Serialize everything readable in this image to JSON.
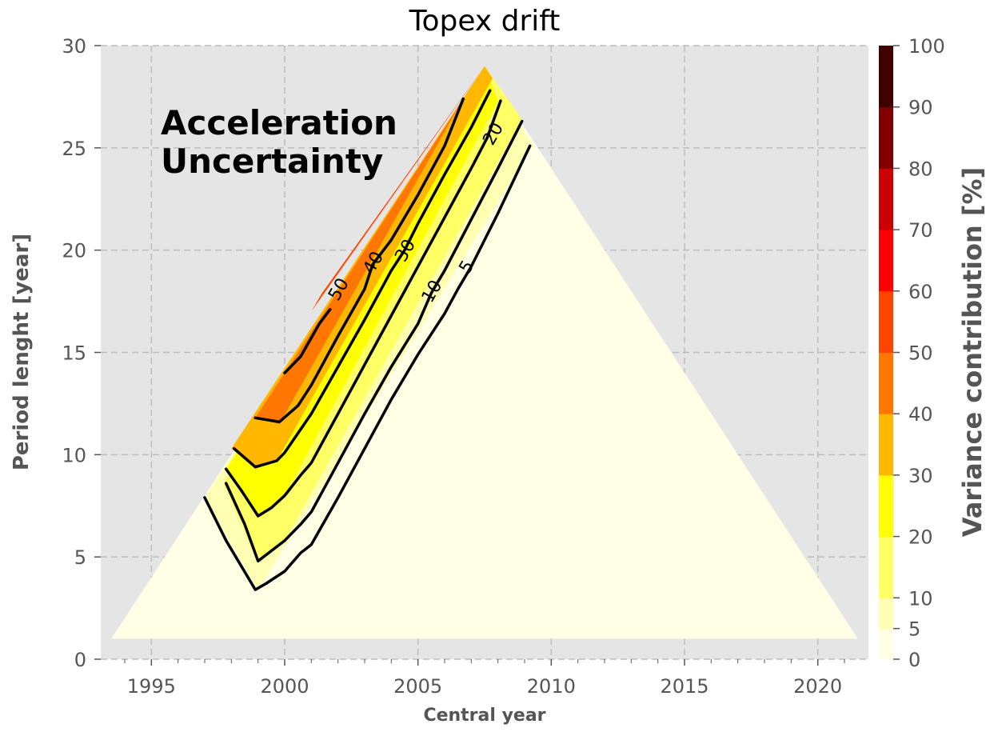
{
  "chart_data": {
    "type": "contourf",
    "title": "Topex drift",
    "xlabel": "Central year",
    "ylabel": "Period lenght [year]",
    "xlim": [
      1993.1,
      2021.9
    ],
    "ylim": [
      0,
      30
    ],
    "xticks": [
      1995,
      2000,
      2005,
      2010,
      2015,
      2020
    ],
    "yticks": [
      0,
      5,
      10,
      15,
      20,
      25,
      30
    ],
    "grid": true,
    "background_color": "#e5e5e5",
    "annotation": [
      "Acceleration",
      "Uncertainty"
    ],
    "domain_triangle": [
      [
        1993.5,
        1.0
      ],
      [
        2007.5,
        29.0
      ],
      [
        2021.5,
        1.0
      ]
    ],
    "colorbar": {
      "label": "Variance contribution [%]",
      "levels": [
        0,
        5,
        10,
        20,
        30,
        40,
        50,
        60,
        70,
        80,
        90,
        100
      ],
      "tick_labels": [
        "0",
        "5",
        "10",
        "20",
        "30",
        "40",
        "50",
        "60",
        "70",
        "80",
        "90",
        "100"
      ],
      "colors": [
        "#ffffe6",
        "#ffffb3",
        "#ffff66",
        "#ffff00",
        "#ffb700",
        "#ff7700",
        "#ff4400",
        "#ff0000",
        "#cc0000",
        "#800000",
        "#400000"
      ]
    },
    "filled_regions": [
      {
        "level": "5-10",
        "color": "#ffffb3",
        "points": [
          [
            1997.0,
            7.9
          ],
          [
            1999.0,
            3.4
          ],
          [
            2009.3,
            25.1
          ],
          [
            2007.5,
            29.0
          ]
        ]
      },
      {
        "level": "10-20",
        "color": "#ffff66",
        "points": [
          [
            1997.7,
            8.6
          ],
          [
            1999.0,
            4.7
          ],
          [
            2000.0,
            5.8
          ],
          [
            2008.9,
            26.4
          ],
          [
            2007.5,
            29.0
          ]
        ]
      },
      {
        "level": "20-30",
        "color": "#ffff00",
        "points": [
          [
            1997.8,
            9.3
          ],
          [
            1999.0,
            7.0
          ],
          [
            2000.0,
            8.0
          ],
          [
            2008.0,
            27.3
          ],
          [
            2007.5,
            29.0
          ]
        ]
      },
      {
        "level": "30-40",
        "color": "#ffb700",
        "points": [
          [
            1998.0,
            10.3
          ],
          [
            1998.9,
            9.3
          ],
          [
            1999.7,
            9.7
          ],
          [
            2007.8,
            28.4
          ],
          [
            2007.5,
            29.0
          ]
        ]
      },
      {
        "level": "40-50",
        "color": "#ff7700",
        "points": [
          [
            1998.9,
            11.8
          ],
          [
            1999.8,
            11.5
          ],
          [
            2006.7,
            27.4
          ],
          [
            2007.5,
            29.0
          ]
        ]
      },
      {
        "level": "50-60",
        "color": "#ff4400",
        "points": [
          [
            2001.0,
            17.0
          ],
          [
            2007.5,
            29.0
          ],
          [
            2001.4,
            17.9
          ]
        ]
      }
    ],
    "contour_lines": [
      {
        "level": 5,
        "label": "5",
        "label_at": [
          2006.8,
          19.2
        ],
        "points": [
          [
            1997.0,
            7.9
          ],
          [
            1997.8,
            5.8
          ],
          [
            1998.9,
            3.4
          ],
          [
            1999.3,
            3.7
          ],
          [
            2000.0,
            4.3
          ],
          [
            2000.6,
            5.2
          ],
          [
            2001.0,
            5.6
          ],
          [
            2002.0,
            7.9
          ],
          [
            2003.0,
            10.3
          ],
          [
            2004.0,
            12.7
          ],
          [
            2005.0,
            14.9
          ],
          [
            2006.0,
            16.9
          ],
          [
            2006.5,
            18.1
          ],
          [
            2007.0,
            19.2
          ],
          [
            2008.0,
            21.8
          ],
          [
            2009.2,
            25.1
          ]
        ]
      },
      {
        "level": 10,
        "label": "10",
        "label_at": [
          2005.5,
          18.0
        ],
        "points": [
          [
            1997.8,
            8.6
          ],
          [
            1998.5,
            6.6
          ],
          [
            1999.0,
            4.8
          ],
          [
            1999.4,
            5.2
          ],
          [
            2000.0,
            5.8
          ],
          [
            2000.6,
            6.6
          ],
          [
            2001.0,
            7.2
          ],
          [
            2002.0,
            9.6
          ],
          [
            2003.0,
            12.0
          ],
          [
            2004.0,
            14.3
          ],
          [
            2005.0,
            16.4
          ],
          [
            2005.5,
            17.9
          ],
          [
            2006.0,
            19.0
          ],
          [
            2007.0,
            21.5
          ],
          [
            2008.0,
            24.0
          ],
          [
            2008.9,
            26.3
          ]
        ]
      },
      {
        "level": 20,
        "label": "20",
        "label_at": [
          2007.8,
          25.7
        ],
        "points": [
          [
            1997.8,
            9.3
          ],
          [
            1998.4,
            8.2
          ],
          [
            1999.0,
            7.0
          ],
          [
            1999.5,
            7.4
          ],
          [
            2000.0,
            8.0
          ],
          [
            2000.6,
            9.0
          ],
          [
            2001.0,
            9.6
          ],
          [
            2002.0,
            12.0
          ],
          [
            2003.0,
            14.4
          ],
          [
            2004.0,
            16.8
          ],
          [
            2005.0,
            19.2
          ],
          [
            2006.0,
            21.6
          ],
          [
            2007.0,
            24.0
          ],
          [
            2007.6,
            25.5
          ],
          [
            2008.1,
            27.3
          ]
        ]
      },
      {
        "level": 30,
        "label": "30",
        "label_at": [
          2004.5,
          20.0
        ],
        "points": [
          [
            1998.1,
            10.3
          ],
          [
            1998.9,
            9.4
          ],
          [
            1999.7,
            9.7
          ],
          [
            2000.0,
            10.1
          ],
          [
            2001.0,
            12.0
          ],
          [
            2002.0,
            14.3
          ],
          [
            2003.0,
            16.6
          ],
          [
            2004.0,
            19.0
          ],
          [
            2004.5,
            20.0
          ],
          [
            2005.0,
            21.3
          ],
          [
            2006.0,
            23.7
          ],
          [
            2007.0,
            26.0
          ],
          [
            2007.7,
            27.8
          ]
        ]
      },
      {
        "level": 40,
        "label": "40",
        "label_at": [
          2003.3,
          19.4
        ],
        "points": [
          [
            1998.9,
            11.8
          ],
          [
            1999.8,
            11.6
          ],
          [
            2000.5,
            12.4
          ],
          [
            2001.0,
            13.4
          ],
          [
            2002.0,
            15.8
          ],
          [
            2003.0,
            18.1
          ],
          [
            2003.3,
            19.3
          ],
          [
            2004.0,
            20.5
          ],
          [
            2005.0,
            22.7
          ],
          [
            2006.0,
            25.1
          ],
          [
            2006.7,
            27.4
          ]
        ]
      },
      {
        "level": 50,
        "label": "50",
        "label_at": [
          2002.0,
          18.1
        ],
        "points": [
          [
            2000.0,
            14.0
          ],
          [
            2000.6,
            14.8
          ],
          [
            2001.3,
            16.4
          ],
          [
            2001.7,
            17.1
          ]
        ]
      }
    ]
  }
}
